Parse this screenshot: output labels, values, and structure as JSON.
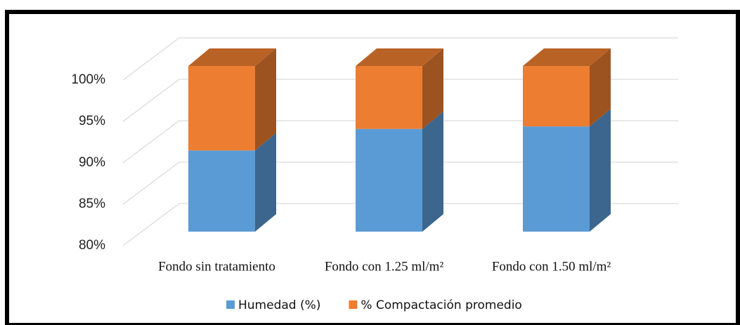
{
  "chart_data": {
    "type": "bar3d_stacked",
    "categories": [
      "Fondo sin tratamiento",
      "Fondo con 1.25 ml/m²",
      "Fondo con 1.50 ml/m²"
    ],
    "series": [
      {
        "name": "Humedad (%)",
        "color": "#5b9bd5",
        "values": [
          89.8,
          92.4,
          92.7
        ]
      },
      {
        "name": "% Compactación promedio",
        "color": "#ed7d31",
        "values": [
          10.2,
          7.6,
          7.3
        ]
      }
    ],
    "ylim": [
      80,
      100
    ],
    "yticks": [
      {
        "value": 80,
        "label": "80%"
      },
      {
        "value": 85,
        "label": "85%"
      },
      {
        "value": 90,
        "label": "90%"
      },
      {
        "value": 95,
        "label": "95%"
      },
      {
        "value": 100,
        "label": "100%"
      }
    ],
    "grid": true,
    "legend": "bottom"
  }
}
